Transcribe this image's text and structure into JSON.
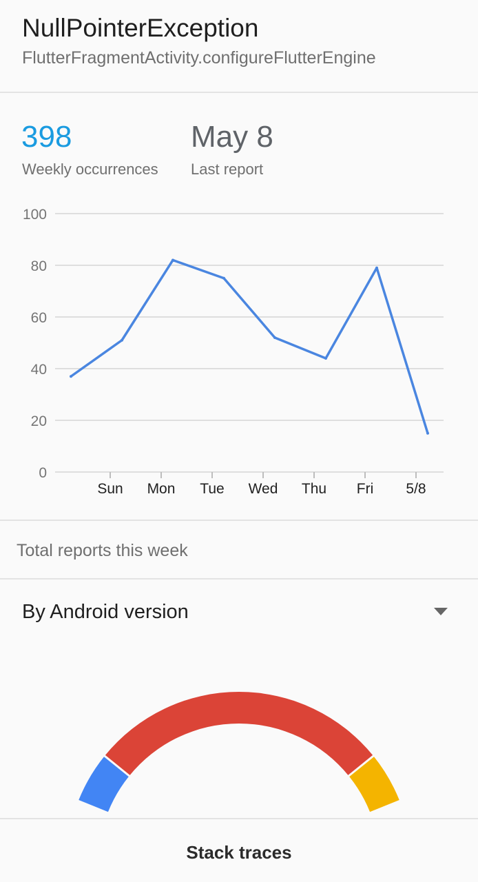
{
  "header": {
    "title": "NullPointerException",
    "subtitle": "FlutterFragmentActivity.configureFlutterEngine"
  },
  "stats": {
    "weekly_value": "398",
    "weekly_label": "Weekly occurrences",
    "last_value": "May 8",
    "last_label": "Last report",
    "accent_color": "#1a9be0"
  },
  "chart_data": {
    "type": "line",
    "x_ticks": [
      "Sun",
      "Mon",
      "Tue",
      "Wed",
      "Thu",
      "Fri",
      "5/8"
    ],
    "y_ticks": [
      "0",
      "20",
      "40",
      "60",
      "80",
      "100"
    ],
    "ylim": [
      0,
      100
    ],
    "grid": true,
    "series": [
      {
        "color": "#4a86e0",
        "values": [
          37,
          51,
          82,
          75,
          52,
          44,
          79,
          15
        ]
      }
    ]
  },
  "section_label": "Total reports this week",
  "breakdown": {
    "title": "By Android version",
    "dropdown_icon": "caret-down-icon",
    "slice_colors": [
      "#4285f4",
      "#db4437",
      "#f4b400"
    ]
  },
  "bottom": {
    "label": "Stack traces"
  }
}
